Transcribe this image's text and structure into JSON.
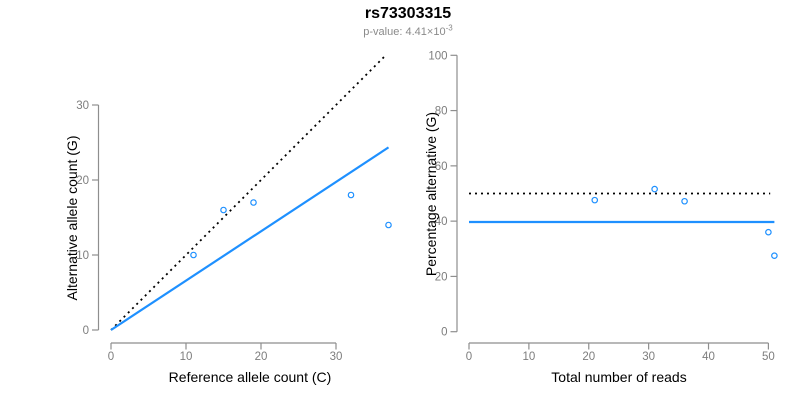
{
  "header": {
    "title": "rs73303315",
    "p_value": {
      "prefix": "p-value: ",
      "mantissa": "4.41",
      "base": "×10",
      "exponent": "-3"
    }
  },
  "colors": {
    "accent_blue": "#1E90FF",
    "dotted_black": "#000000",
    "axis_line": "#8E8E8E",
    "tick_label": "#7D7D7D",
    "axis_title": "#000000",
    "title_text": "#000000",
    "subtitle_text": "#8A8A8A",
    "background": "#FFFFFF"
  },
  "chart_data": [
    {
      "type": "scatter",
      "name": "allele-counts",
      "xlabel": "Reference allele count (C)",
      "ylabel": "Alternative allele count (G)",
      "xticks": [
        0,
        10,
        20,
        30
      ],
      "yticks": [
        0,
        10,
        20,
        30
      ],
      "xlim": [
        0,
        37.5
      ],
      "ylim": [
        0,
        37
      ],
      "grid": false,
      "legend": "none",
      "points": [
        [
          11,
          10
        ],
        [
          15,
          16
        ],
        [
          19,
          17
        ],
        [
          32,
          18
        ],
        [
          37,
          14
        ]
      ],
      "lines": [
        {
          "name": "identity-line-50pct",
          "style": "dotted",
          "color_key": "dotted_black",
          "from": [
            0,
            0
          ],
          "to": [
            36.5,
            36.5
          ]
        },
        {
          "name": "fit-line-40pct",
          "style": "solid",
          "color_key": "accent_blue",
          "from": [
            0,
            0
          ],
          "to": [
            37,
            24.35
          ]
        }
      ]
    },
    {
      "type": "scatter",
      "name": "percentage-alternative",
      "xlabel": "Total number of reads",
      "ylabel": "Percentage alternative (G)",
      "xticks": [
        0,
        10,
        20,
        30,
        40,
        50
      ],
      "yticks": [
        0,
        20,
        40,
        60,
        80,
        100
      ],
      "xlim": [
        0,
        51
      ],
      "ylim": [
        0,
        100
      ],
      "grid": false,
      "legend": "none",
      "points": [
        [
          21,
          47.6
        ],
        [
          31,
          51.6
        ],
        [
          36,
          47.2
        ],
        [
          50,
          36
        ],
        [
          51,
          27.5
        ]
      ],
      "lines": [
        {
          "name": "expected-50pct-line",
          "style": "dotted",
          "color_key": "dotted_black",
          "from": [
            0,
            50
          ],
          "to": [
            50.3,
            50
          ]
        },
        {
          "name": "observed-40pct-line",
          "style": "solid",
          "color_key": "accent_blue",
          "from": [
            0,
            39.7
          ],
          "to": [
            51,
            39.7
          ]
        }
      ]
    }
  ]
}
